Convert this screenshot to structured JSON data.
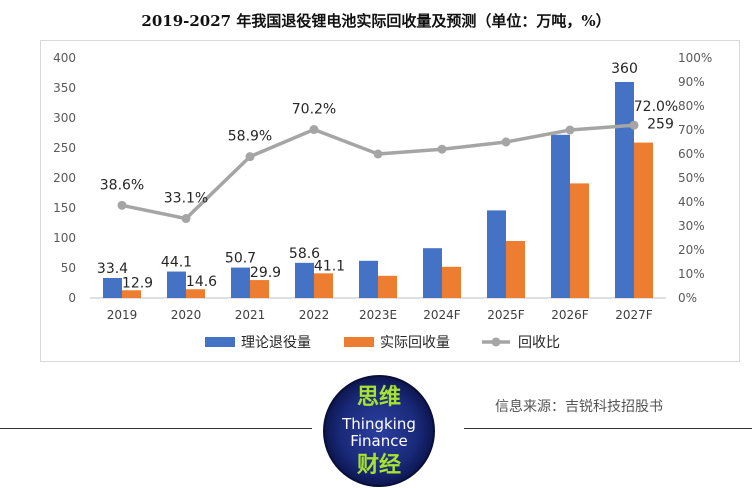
{
  "chart_data": {
    "type": "bar",
    "title": "2019-2027 年我国退役锂电池实际回收量及预测（单位：万吨，%）",
    "categories": [
      "2019",
      "2020",
      "2021",
      "2022",
      "2023E",
      "2024F",
      "2025F",
      "2026F",
      "2027F"
    ],
    "series": [
      {
        "name": "理论退役量",
        "type": "bar",
        "axis": "left",
        "color": "#4472C4",
        "values": [
          33.4,
          44.1,
          50.7,
          58.6,
          62,
          83,
          146,
          272,
          360
        ],
        "labels": [
          "33.4",
          "44.1",
          "50.7",
          "58.6",
          "",
          "",
          "",
          "",
          "360"
        ]
      },
      {
        "name": "实际回收量",
        "type": "bar",
        "axis": "left",
        "color": "#ED7D31",
        "values": [
          12.9,
          14.6,
          29.9,
          41.1,
          37,
          52,
          95,
          191,
          259
        ],
        "labels": [
          "12.9",
          "14.6",
          "29.9",
          "41.1",
          "",
          "",
          "",
          "",
          "259"
        ]
      },
      {
        "name": "回收比",
        "type": "line",
        "axis": "right",
        "color": "#A5A5A5",
        "values": [
          38.6,
          33.1,
          58.9,
          70.2,
          60,
          62,
          65,
          70,
          72.0
        ],
        "labels": [
          "38.6%",
          "33.1%",
          "58.9%",
          "70.2%",
          "",
          "",
          "",
          "",
          "72.0%"
        ]
      }
    ],
    "left_axis": {
      "ylim": [
        0,
        400
      ],
      "ticks": [
        0,
        50,
        100,
        150,
        200,
        250,
        300,
        350,
        400
      ]
    },
    "right_axis": {
      "ylim": [
        0,
        100
      ],
      "ticks": [
        "0%",
        "10%",
        "20%",
        "30%",
        "40%",
        "50%",
        "60%",
        "70%",
        "80%",
        "90%",
        "100%"
      ]
    },
    "legend_position": "bottom",
    "grid": false
  },
  "footer": {
    "source": "信息来源：吉锐科技招股书",
    "logo_top": "思维",
    "logo_en1": "Thingking",
    "logo_en2": "Finance",
    "logo_bottom": "财经"
  }
}
